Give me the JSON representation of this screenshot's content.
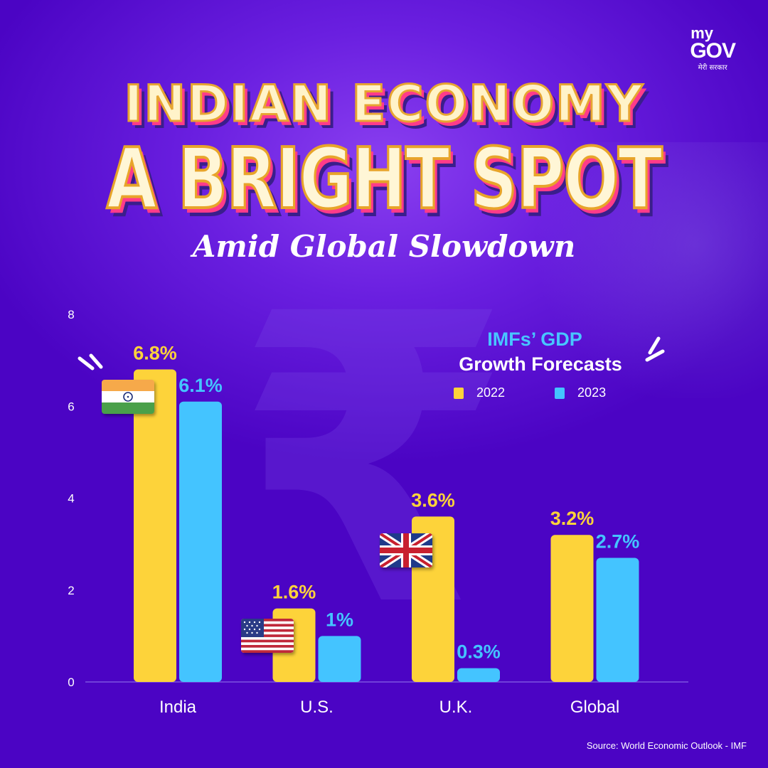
{
  "brand": {
    "logo_my": "my",
    "logo_gov": "GOV",
    "logo_hindi": "मेरी सरकार"
  },
  "headline": {
    "line1": "INDIAN ECONOMY",
    "line2": "A BRIGHT SPOT",
    "subtitle": "Amid Global Slowdown"
  },
  "legend": {
    "title_line1": "IMFs’ GDP",
    "title_line2": "Growth Forecasts",
    "items": [
      "2022",
      "2023"
    ]
  },
  "source": "Source: World Economic Outlook - IMF",
  "colors": {
    "series_2022": "#fdd33a",
    "series_2023": "#44c4ff",
    "background": "#4b04c4"
  },
  "flags": [
    "india-flag-icon",
    "us-flag-icon",
    "uk-flag-icon"
  ],
  "chart_data": {
    "type": "bar",
    "categories": [
      "India",
      "U.S.",
      "U.K.",
      "Global"
    ],
    "series": [
      {
        "name": "2022",
        "values": [
          6.8,
          1.6,
          3.6,
          3.2
        ],
        "labels": [
          "6.8%",
          "1.6%",
          "3.6%",
          "3.2%"
        ]
      },
      {
        "name": "2023",
        "values": [
          6.1,
          1.0,
          0.3,
          2.7
        ],
        "labels": [
          "6.1%",
          "1%",
          "0.3%",
          "2.7%"
        ]
      }
    ],
    "title": "IMFs’ GDP Growth Forecasts",
    "xlabel": "",
    "ylabel": "",
    "ylim": [
      0,
      8
    ],
    "yticks": [
      "0",
      "2",
      "4",
      "6",
      "8"
    ],
    "grid": false,
    "legend_position": "top-right"
  }
}
